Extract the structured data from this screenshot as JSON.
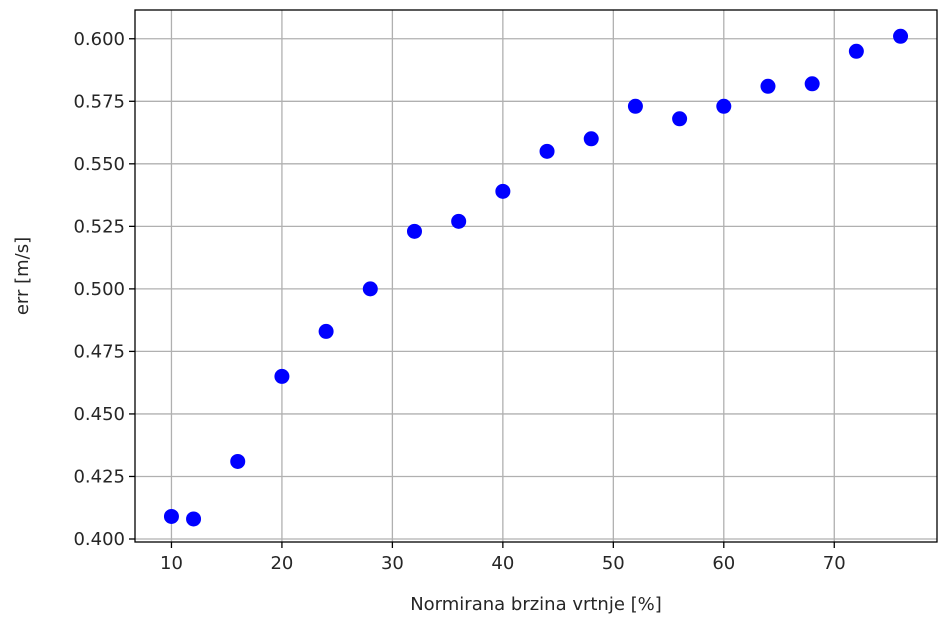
{
  "chart_data": {
    "type": "scatter",
    "title": "",
    "xlabel": "Normirana brzina vrtnje [%]",
    "ylabel": "err [m/s]",
    "xlim": [
      6.7,
      79.3
    ],
    "ylim": [
      0.3988,
      0.6115
    ],
    "xticks": [
      10,
      20,
      30,
      40,
      50,
      60,
      70
    ],
    "xtick_labels": [
      "10",
      "20",
      "30",
      "40",
      "50",
      "60",
      "70"
    ],
    "yticks": [
      0.4,
      0.425,
      0.45,
      0.475,
      0.5,
      0.525,
      0.55,
      0.575,
      0.6
    ],
    "ytick_labels": [
      "0.400",
      "0.425",
      "0.450",
      "0.475",
      "0.500",
      "0.525",
      "0.550",
      "0.575",
      "0.600"
    ],
    "grid": true,
    "legend": "none",
    "series": [
      {
        "color": "#0000ff",
        "marker": "circle",
        "x": [
          10,
          12,
          16,
          20,
          24,
          28,
          32,
          36,
          40,
          44,
          48,
          52,
          56,
          60,
          64,
          68,
          72,
          76
        ],
        "y": [
          0.409,
          0.408,
          0.431,
          0.465,
          0.483,
          0.5,
          0.523,
          0.527,
          0.539,
          0.555,
          0.56,
          0.573,
          0.568,
          0.573,
          0.581,
          0.582,
          0.595,
          0.601
        ]
      }
    ]
  }
}
